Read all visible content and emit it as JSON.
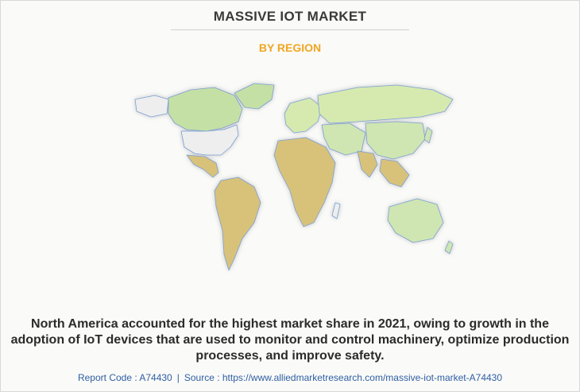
{
  "header": {
    "title": "MASSIVE IOT MARKET",
    "subtitle": "BY REGION"
  },
  "map": {
    "legend_colors": {
      "north_america": "#c5e0a5",
      "usa": "#eeeeee",
      "latin_america_africa": "#d8c27a",
      "europe_asia": "#d6eab0",
      "asia_pacific": "#cfe6b2",
      "unshaded": "#f2f2ee"
    }
  },
  "caption": {
    "text": "North America accounted for the highest market share in 2021, owing to growth in the adoption of IoT devices that are used to monitor and control machinery, optimize production processes, and improve safety."
  },
  "footer": {
    "report_code": "Report Code : A74430",
    "separator": "|",
    "source": "Source : https://www.alliedmarketresearch.com/massive-iot-market-A74430"
  }
}
